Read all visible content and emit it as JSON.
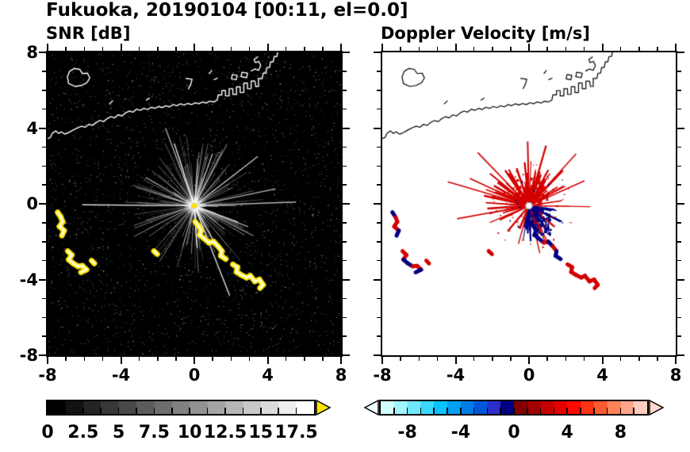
{
  "figure": {
    "title": "Fukuoka, 20190104 [00:11, el=0.0]"
  },
  "chart_data": [
    {
      "type": "heatmap",
      "panel": "snr",
      "title": "SNR [dB]",
      "xlim": [
        -8,
        8
      ],
      "ylim": [
        -8,
        8
      ],
      "xticks": [
        -8,
        -4,
        0,
        4,
        8
      ],
      "yticks": [
        8,
        4,
        0,
        -4,
        -8
      ],
      "minor_tick_step": 1,
      "y_labels_visible": true,
      "background": "#000000",
      "coast_color": "#ffffff",
      "strong_echo_color": "#ffe600",
      "colorbar": {
        "min": 0,
        "max": 18.75,
        "tick_labels": [
          0,
          2.5,
          5,
          7.5,
          10,
          12.5,
          15,
          17.5
        ],
        "minor_tick_step": 1.25,
        "segments": 15,
        "low_color": "#000000",
        "high_color": "#ffffff",
        "over_arrow_color": "#ffe600"
      }
    },
    {
      "type": "heatmap",
      "panel": "doppler_velocity",
      "title": "Doppler Velocity [m/s]",
      "xlim": [
        -8,
        8
      ],
      "ylim": [
        -8,
        8
      ],
      "xticks": [
        -8,
        -4,
        0,
        4,
        8
      ],
      "yticks": [
        8,
        4,
        0,
        -4,
        -8
      ],
      "minor_tick_step": 1,
      "y_labels_visible": false,
      "background": "#ffffff",
      "coast_color": "#000000",
      "approaching_color": "#000082",
      "receding_color": "#d40000",
      "colorbar": {
        "min": -10,
        "max": 10,
        "tick_labels": [
          -8,
          -4,
          0,
          4,
          8
        ],
        "minor_tick_step": 1,
        "segment_colors": [
          "#d2ffff",
          "#a0f5ff",
          "#6ee8ff",
          "#3cd7ff",
          "#0ac2ff",
          "#00a0f5",
          "#007ce6",
          "#0057d7",
          "#2b2fc8",
          "#000082",
          "#820000",
          "#a30000",
          "#c40000",
          "#e50000",
          "#ff0a00",
          "#ff3214",
          "#ff5a32",
          "#ff8255",
          "#ffa58c",
          "#ffcdbe"
        ],
        "under_arrow_color": "#f2ffff",
        "over_arrow_color": "#ffd9cc"
      }
    }
  ],
  "map": {
    "coastlines": [
      {
        "name": "mainland-coast",
        "closed": false,
        "points": [
          [
            -8,
            3.45
          ],
          [
            -7.85,
            3.5
          ],
          [
            -7.75,
            3.72
          ],
          [
            -7.55,
            3.85
          ],
          [
            -7.4,
            3.72
          ],
          [
            -7.25,
            3.8
          ],
          [
            -7.05,
            3.68
          ],
          [
            -6.85,
            3.76
          ],
          [
            -6.6,
            3.9
          ],
          [
            -6.35,
            4.02
          ],
          [
            -6.15,
            4.1
          ],
          [
            -5.95,
            4.04
          ],
          [
            -5.75,
            4.2
          ],
          [
            -5.55,
            4.14
          ],
          [
            -5.35,
            4.3
          ],
          [
            -5.15,
            4.4
          ],
          [
            -4.95,
            4.34
          ],
          [
            -4.75,
            4.5
          ],
          [
            -4.55,
            4.6
          ],
          [
            -4.35,
            4.54
          ],
          [
            -4.15,
            4.7
          ],
          [
            -3.95,
            4.64
          ],
          [
            -3.75,
            4.8
          ],
          [
            -3.55,
            4.9
          ],
          [
            -3.35,
            4.84
          ],
          [
            -3.15,
            5.0
          ],
          [
            -2.95,
            4.94
          ],
          [
            -2.75,
            5.04
          ],
          [
            -2.55,
            4.98
          ],
          [
            -2.35,
            5.1
          ],
          [
            -2.15,
            5.04
          ],
          [
            -1.95,
            5.14
          ],
          [
            -1.75,
            5.08
          ],
          [
            -1.55,
            5.18
          ],
          [
            -1.35,
            5.12
          ],
          [
            -1.15,
            5.24
          ],
          [
            -0.95,
            5.18
          ],
          [
            -0.75,
            5.28
          ],
          [
            -0.55,
            5.22
          ],
          [
            -0.35,
            5.3
          ],
          [
            -0.15,
            5.24
          ],
          [
            0.05,
            5.34
          ],
          [
            0.25,
            5.28
          ],
          [
            0.45,
            5.38
          ],
          [
            0.65,
            5.32
          ],
          [
            0.85,
            5.42
          ],
          [
            1.05,
            5.38
          ],
          [
            1.25,
            5.48
          ],
          [
            1.3,
            5.75
          ],
          [
            1.5,
            5.75
          ],
          [
            1.5,
            5.98
          ],
          [
            1.7,
            5.98
          ],
          [
            1.7,
            5.7
          ],
          [
            1.9,
            5.7
          ],
          [
            1.9,
            6.08
          ],
          [
            2.1,
            6.08
          ],
          [
            2.1,
            5.78
          ],
          [
            2.3,
            5.78
          ],
          [
            2.3,
            6.18
          ],
          [
            2.5,
            6.18
          ],
          [
            2.5,
            5.88
          ],
          [
            2.7,
            5.88
          ],
          [
            2.7,
            6.38
          ],
          [
            2.9,
            6.38
          ],
          [
            2.9,
            6.08
          ],
          [
            3.1,
            6.08
          ],
          [
            3.1,
            6.48
          ],
          [
            3.3,
            6.48
          ],
          [
            3.35,
            6.2
          ],
          [
            3.5,
            6.2
          ],
          [
            3.5,
            6.62
          ],
          [
            3.7,
            6.62
          ],
          [
            3.76,
            6.9
          ],
          [
            3.9,
            6.9
          ],
          [
            3.96,
            7.2
          ],
          [
            4.1,
            7.2
          ],
          [
            4.16,
            7.5
          ],
          [
            4.3,
            7.5
          ],
          [
            4.36,
            7.78
          ],
          [
            4.5,
            7.78
          ],
          [
            4.55,
            8.0
          ]
        ]
      },
      {
        "name": "bay-island",
        "closed": true,
        "points": [
          [
            -6.85,
            6.35
          ],
          [
            -6.5,
            6.2
          ],
          [
            -6.15,
            6.25
          ],
          [
            -5.85,
            6.4
          ],
          [
            -5.7,
            6.65
          ],
          [
            -5.82,
            6.9
          ],
          [
            -6.1,
            6.88
          ],
          [
            -6.25,
            7.1
          ],
          [
            -6.55,
            7.15
          ],
          [
            -6.8,
            7.0
          ],
          [
            -6.92,
            6.7
          ]
        ]
      },
      {
        "name": "offshore-mark-1",
        "closed": false,
        "points": [
          [
            -0.45,
            6.62
          ],
          [
            -0.12,
            6.58
          ],
          [
            -0.2,
            6.3
          ],
          [
            -0.32,
            6.08
          ]
        ]
      },
      {
        "name": "offshore-mark-2",
        "closed": false,
        "points": [
          [
            0.82,
            6.88
          ],
          [
            0.95,
            7.04
          ]
        ]
      },
      {
        "name": "offshore-mark-3",
        "closed": false,
        "points": [
          [
            1.08,
            6.56
          ],
          [
            1.26,
            6.63
          ]
        ]
      },
      {
        "name": "breakwater-1",
        "closed": true,
        "points": [
          [
            2.02,
            6.6
          ],
          [
            2.28,
            6.55
          ],
          [
            2.34,
            6.78
          ],
          [
            2.08,
            6.83
          ]
        ]
      },
      {
        "name": "breakwater-2",
        "closed": true,
        "points": [
          [
            2.55,
            6.72
          ],
          [
            2.85,
            6.66
          ],
          [
            2.9,
            6.9
          ],
          [
            2.6,
            6.95
          ]
        ]
      },
      {
        "name": "harbor-hook",
        "closed": false,
        "points": [
          [
            3.1,
            7.02
          ],
          [
            3.3,
            7.12
          ],
          [
            3.5,
            7.05
          ],
          [
            3.62,
            7.3
          ],
          [
            3.52,
            7.52
          ],
          [
            3.32,
            7.46
          ],
          [
            3.26,
            7.62
          ],
          [
            3.46,
            7.76
          ]
        ]
      },
      {
        "name": "offshore-mark-4",
        "closed": false,
        "points": [
          [
            -4.62,
            5.28
          ],
          [
            -4.45,
            5.44
          ]
        ]
      },
      {
        "name": "offshore-mark-5",
        "closed": false,
        "points": [
          [
            -2.62,
            5.48
          ],
          [
            -2.45,
            5.58
          ]
        ]
      }
    ]
  },
  "echoes": {
    "radar_origin": [
      0,
      -0.1
    ],
    "chains": [
      {
        "name": "southeast-band-inner",
        "points": [
          [
            0.05,
            -0.95
          ],
          [
            0.22,
            -1.15
          ],
          [
            0.38,
            -1.4
          ],
          [
            0.3,
            -1.65
          ],
          [
            0.55,
            -1.85
          ],
          [
            0.8,
            -2.05
          ],
          [
            1.05,
            -2.0
          ],
          [
            1.3,
            -2.25
          ],
          [
            1.5,
            -2.5
          ],
          [
            1.45,
            -2.75
          ],
          [
            1.72,
            -2.92
          ]
        ]
      },
      {
        "name": "southeast-band-outer",
        "points": [
          [
            2.1,
            -3.2
          ],
          [
            2.35,
            -3.35
          ],
          [
            2.3,
            -3.6
          ],
          [
            2.55,
            -3.75
          ],
          [
            2.85,
            -3.9
          ],
          [
            3.05,
            -3.8
          ],
          [
            3.3,
            -4.1
          ],
          [
            3.55,
            -4.0
          ],
          [
            3.75,
            -4.28
          ],
          [
            3.58,
            -4.45
          ]
        ]
      },
      {
        "name": "west-band-upper",
        "points": [
          [
            -7.45,
            -0.45
          ],
          [
            -7.28,
            -0.7
          ],
          [
            -7.18,
            -0.95
          ],
          [
            -7.35,
            -1.2
          ],
          [
            -7.1,
            -1.42
          ],
          [
            -7.22,
            -1.68
          ]
        ]
      },
      {
        "name": "west-band-lower",
        "points": [
          [
            -6.9,
            -2.5
          ],
          [
            -6.68,
            -2.7
          ],
          [
            -6.85,
            -2.95
          ],
          [
            -6.6,
            -3.15
          ],
          [
            -6.35,
            -3.3
          ],
          [
            -6.1,
            -3.28
          ],
          [
            -5.88,
            -3.48
          ],
          [
            -6.18,
            -3.62
          ]
        ]
      },
      {
        "name": "small-echo-1",
        "points": [
          [
            -5.6,
            -3.0
          ],
          [
            -5.45,
            -3.15
          ]
        ]
      },
      {
        "name": "small-echo-2",
        "points": [
          [
            -2.2,
            -2.5
          ],
          [
            -2.02,
            -2.66
          ]
        ]
      }
    ]
  }
}
